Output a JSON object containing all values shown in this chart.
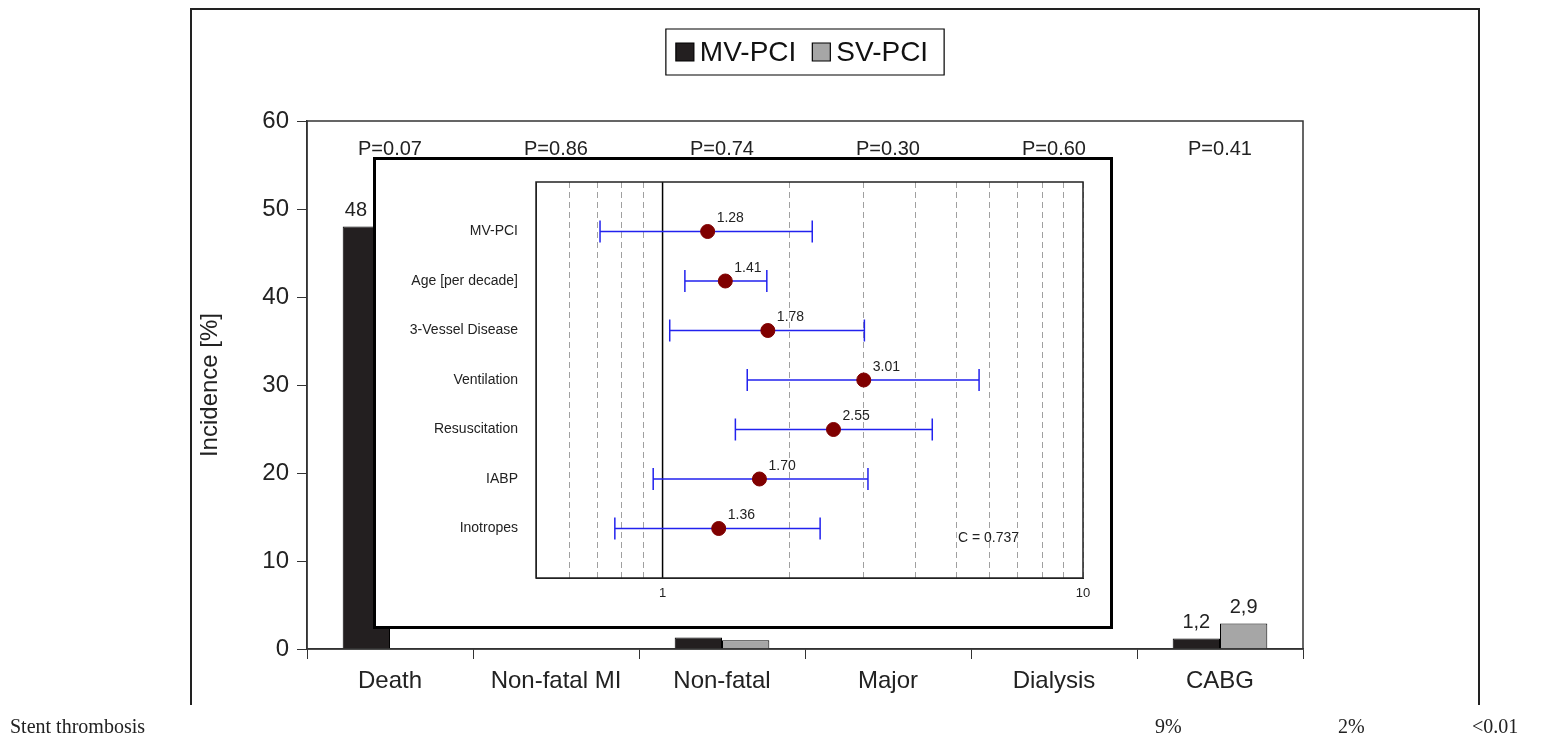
{
  "chart_data": [
    {
      "type": "bar",
      "ylabel": "Incidence [%]",
      "categories": [
        "Death",
        "Non-fatal MI",
        "Non-fatal",
        "Major",
        "Dialysis",
        "CABG"
      ],
      "series": [
        {
          "name": "MV-PCI",
          "color": "#231f20",
          "values": [
            48,
            null,
            1.3,
            null,
            null,
            1.2
          ],
          "value_labels": [
            "48",
            null,
            null,
            null,
            null,
            "1,2"
          ]
        },
        {
          "name": "SV-PCI",
          "color": "#a6a6a6",
          "values": [
            null,
            null,
            1.0,
            null,
            null,
            2.9
          ],
          "value_labels": [
            null,
            null,
            null,
            null,
            null,
            "2,9"
          ]
        }
      ],
      "ylim": [
        0,
        60
      ],
      "yticks": [
        0,
        10,
        20,
        30,
        40,
        50,
        60
      ],
      "grid": false,
      "legend": "top",
      "annotations": [
        "P=0.07",
        "P=0.86",
        "P=0.74",
        "P=0.30",
        "P=0.60",
        "P=0.41",
        "Stent thrombosis",
        "9%",
        "2%",
        "<0.01"
      ]
    },
    {
      "type": "scatter",
      "orientation": "horizontal",
      "categories": [
        "MV-PCI",
        "Age [per decade]",
        "3-Vessel Disease",
        "Ventilation",
        "Resuscitation",
        "IABP",
        "Inotropes"
      ],
      "values": [
        1.28,
        1.41,
        1.78,
        3.01,
        2.55,
        1.7,
        1.36
      ],
      "errors": [
        [
          0.71,
          2.27
        ],
        [
          1.13,
          1.77
        ],
        [
          1.04,
          3.02
        ],
        [
          1.59,
          5.66
        ],
        [
          1.49,
          4.38
        ],
        [
          0.95,
          3.08
        ],
        [
          0.77,
          2.37
        ]
      ],
      "value_labels": [
        "1.28",
        "1.41",
        "1.78",
        "3.01",
        "2.55",
        "1.70",
        "1.36"
      ],
      "color": "#800000",
      "log": "x",
      "xlim": [
        0.5,
        10
      ],
      "xticks": [
        {
          "value": 0.6,
          "label": null
        },
        {
          "value": 0.7,
          "label": null
        },
        {
          "value": 0.8,
          "label": null
        },
        {
          "value": 0.9,
          "label": null
        },
        1,
        {
          "value": 2,
          "label": null
        },
        {
          "value": 3,
          "label": null
        },
        {
          "value": 4,
          "label": null
        },
        {
          "value": 5,
          "label": null
        },
        {
          "value": 6,
          "label": null
        },
        {
          "value": 7,
          "label": null
        },
        {
          "value": 8,
          "label": null
        },
        {
          "value": 9,
          "label": null
        },
        10
      ],
      "grid": "x",
      "marker": "circle",
      "ref_lines": [
        {
          "axis": "x",
          "value": 1,
          "color": "#000000",
          "line_style": "solid"
        }
      ],
      "annotations": [
        "C = 0.737"
      ]
    }
  ]
}
